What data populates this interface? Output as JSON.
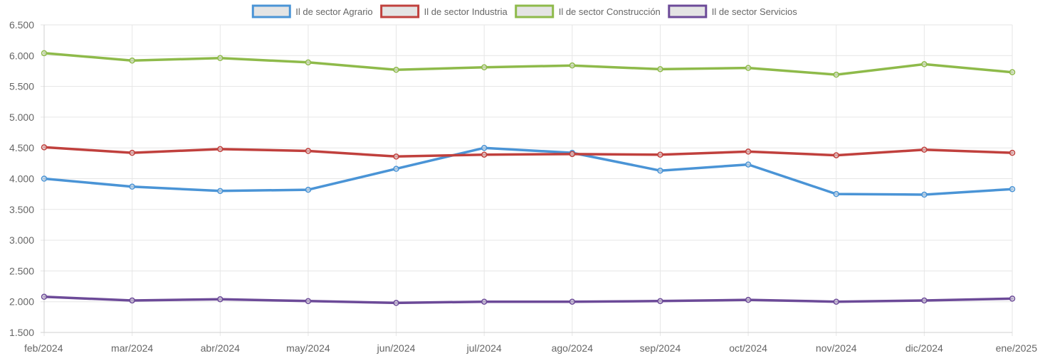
{
  "chart_data": {
    "type": "line",
    "title": "",
    "xlabel": "",
    "ylabel": "",
    "ylim": [
      1500,
      6500
    ],
    "y_ticks": [
      1500,
      2000,
      2500,
      3000,
      3500,
      4000,
      4500,
      5000,
      5500,
      6000,
      6500
    ],
    "y_tick_labels": [
      "1.500",
      "2.000",
      "2.500",
      "3.000",
      "3.500",
      "4.000",
      "4.500",
      "5.000",
      "5.500",
      "6.000",
      "6.500"
    ],
    "grid": true,
    "legend_position": "top-center",
    "categories": [
      "feb/2024",
      "mar/2024",
      "abr/2024",
      "may/2024",
      "jun/2024",
      "jul/2024",
      "ago/2024",
      "sep/2024",
      "oct/2024",
      "nov/2024",
      "dic/2024",
      "ene/2025"
    ],
    "series": [
      {
        "name": "Il de sector Agrario",
        "color": "#4a94d6",
        "values": [
          4000,
          3870,
          3800,
          3820,
          4160,
          4500,
          4420,
          4130,
          4230,
          3750,
          3740,
          3830
        ]
      },
      {
        "name": "Il de sector Industria",
        "color": "#c0403d",
        "values": [
          4510,
          4420,
          4480,
          4450,
          4360,
          4390,
          4400,
          4390,
          4440,
          4380,
          4470,
          4420
        ]
      },
      {
        "name": "Il de sector Construcción",
        "color": "#8eba4a",
        "values": [
          6040,
          5920,
          5960,
          5890,
          5770,
          5810,
          5840,
          5780,
          5800,
          5690,
          5860,
          5730
        ]
      },
      {
        "name": "Il de sector Servicios",
        "color": "#6c4a98",
        "values": [
          2080,
          2020,
          2040,
          2010,
          1980,
          2000,
          2000,
          2010,
          2030,
          2000,
          2020,
          2050
        ]
      }
    ]
  }
}
